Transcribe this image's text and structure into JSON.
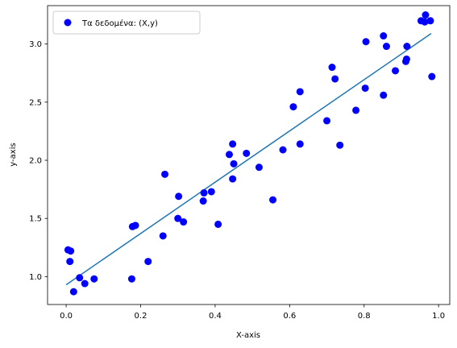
{
  "chart_data": {
    "type": "scatter",
    "xlabel": "X-axis",
    "ylabel": "y-axis",
    "xlim": [
      -0.05,
      1.03
    ],
    "ylim": [
      0.76,
      3.33
    ],
    "xticks": [
      0.0,
      0.2,
      0.4,
      0.6,
      0.8,
      1.0
    ],
    "xtick_labels": [
      "0.0",
      "0.2",
      "0.4",
      "0.6",
      "0.8",
      "1.0"
    ],
    "yticks": [
      1.0,
      1.5,
      2.0,
      2.5,
      3.0
    ],
    "ytick_labels": [
      "1.0",
      "1.5",
      "2.0",
      "2.5",
      "3.0"
    ],
    "grid": false,
    "legend_position": "top-left",
    "series": [
      {
        "name": "Τα δεδομένα: (X,y)",
        "kind": "scatter",
        "color": "#0000ff",
        "points": [
          [
            0.005,
            1.23
          ],
          [
            0.012,
            1.22
          ],
          [
            0.01,
            1.13
          ],
          [
            0.02,
            0.87
          ],
          [
            0.036,
            0.99
          ],
          [
            0.05,
            0.94
          ],
          [
            0.075,
            0.98
          ],
          [
            0.176,
            0.98
          ],
          [
            0.178,
            1.43
          ],
          [
            0.186,
            1.44
          ],
          [
            0.22,
            1.13
          ],
          [
            0.26,
            1.35
          ],
          [
            0.265,
            1.88
          ],
          [
            0.3,
            1.5
          ],
          [
            0.302,
            1.69
          ],
          [
            0.315,
            1.47
          ],
          [
            0.368,
            1.65
          ],
          [
            0.37,
            1.72
          ],
          [
            0.39,
            1.73
          ],
          [
            0.408,
            1.45
          ],
          [
            0.438,
            2.05
          ],
          [
            0.447,
            2.14
          ],
          [
            0.447,
            1.84
          ],
          [
            0.45,
            1.97
          ],
          [
            0.484,
            2.06
          ],
          [
            0.518,
            1.94
          ],
          [
            0.555,
            1.66
          ],
          [
            0.582,
            2.09
          ],
          [
            0.61,
            2.46
          ],
          [
            0.628,
            2.59
          ],
          [
            0.628,
            2.14
          ],
          [
            0.7,
            2.34
          ],
          [
            0.714,
            2.8
          ],
          [
            0.722,
            2.7
          ],
          [
            0.735,
            2.13
          ],
          [
            0.778,
            2.43
          ],
          [
            0.803,
            2.62
          ],
          [
            0.805,
            3.02
          ],
          [
            0.852,
            3.07
          ],
          [
            0.852,
            2.56
          ],
          [
            0.86,
            2.98
          ],
          [
            0.884,
            2.77
          ],
          [
            0.912,
            2.85
          ],
          [
            0.914,
            2.87
          ],
          [
            0.915,
            2.98
          ],
          [
            0.953,
            3.2
          ],
          [
            0.965,
            3.25
          ],
          [
            0.963,
            3.19
          ],
          [
            0.978,
            3.2
          ],
          [
            0.982,
            2.72
          ]
        ]
      },
      {
        "name": "",
        "kind": "line",
        "color": "#1f77b4",
        "points": [
          [
            0.0,
            0.93
          ],
          [
            0.98,
            3.09
          ]
        ]
      }
    ]
  }
}
